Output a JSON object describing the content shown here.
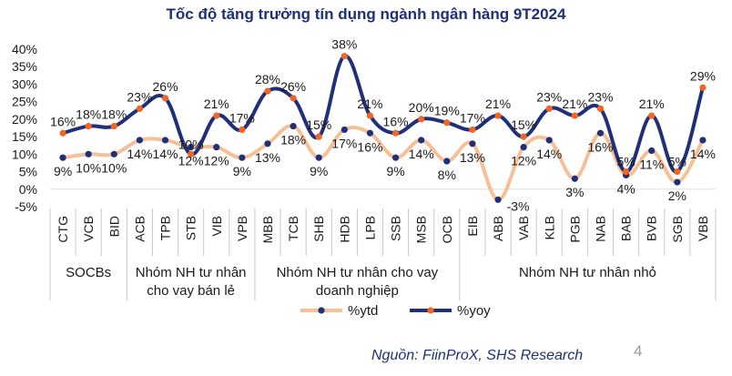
{
  "page": {
    "source": "Nguồn: FiinProX, SHS Research",
    "page_number": "4"
  },
  "chart_data": {
    "type": "line",
    "title": "Tốc độ tăng trưởng tín dụng ngành ngân hàng 9T2024",
    "xlabel": "",
    "ylabel": "",
    "ylim": [
      -5,
      40
    ],
    "yticks": [
      "-5%",
      "0%",
      "5%",
      "10%",
      "15%",
      "20%",
      "25%",
      "30%",
      "35%",
      "40%"
    ],
    "categories": [
      "CTG",
      "VCB",
      "BID",
      "ACB",
      "TPB",
      "STB",
      "VIB",
      "VPB",
      "MBB",
      "TCB",
      "SHB",
      "HDB",
      "LPB",
      "SSB",
      "MSB",
      "OCB",
      "EIB",
      "ABB",
      "VAB",
      "KLB",
      "PGB",
      "NAB",
      "BAB",
      "BVB",
      "SGB",
      "VBB"
    ],
    "groups": [
      {
        "label_lines": [
          "SOCBs"
        ],
        "start": 0,
        "end": 2
      },
      {
        "label_lines": [
          "Nhóm NH tư nhân",
          "cho vay bán lẻ"
        ],
        "start": 3,
        "end": 7
      },
      {
        "label_lines": [
          "Nhóm NH tư nhân cho vay",
          "doanh nghiệp"
        ],
        "start": 8,
        "end": 15
      },
      {
        "label_lines": [
          "Nhóm NH tư nhân nhỏ"
        ],
        "start": 16,
        "end": 25
      }
    ],
    "series": [
      {
        "name": "%ytd",
        "color": "#f7bf96",
        "marker": "#1f2f7a",
        "values": [
          9,
          10,
          10,
          14,
          14,
          12,
          12,
          9,
          13,
          18,
          9,
          17,
          16,
          9,
          14,
          8,
          13,
          -3,
          12,
          14,
          3,
          16,
          4,
          11,
          2,
          14
        ],
        "labels": [
          "9%",
          "10%",
          "10%",
          "14%",
          "14%",
          "12%",
          "12%",
          "9%",
          "13%",
          "18%",
          "9%",
          "17%",
          "16%",
          "9%",
          "14%",
          "8%",
          "13%",
          "-3%",
          "12%",
          "14%",
          "3%",
          "16%",
          "4%",
          "11%",
          "2%",
          "14%"
        ]
      },
      {
        "name": "%yoy",
        "color": "#1f2f7a",
        "marker": "#f26522",
        "values": [
          16,
          18,
          18,
          23,
          26,
          10,
          21,
          17,
          28,
          26,
          15,
          38,
          21,
          16,
          20,
          19,
          17,
          21,
          15,
          23,
          21,
          23,
          5,
          21,
          5,
          29
        ],
        "labels": [
          "16%",
          "18%",
          "18%",
          "23%",
          "26%",
          "10%",
          "21%",
          "17%",
          "28%",
          "26%",
          "15%",
          "38%",
          "21%",
          "16%",
          "20%",
          "19%",
          "17%",
          "21%",
          "15%",
          "23%",
          "21%",
          "23%",
          "5%",
          "21%",
          "5%",
          "29%"
        ]
      }
    ],
    "legend_position": "bottom",
    "colors": {
      "title": "#1f2f7a",
      "axis": "#c8c8c8",
      "text": "#1a1a1a"
    }
  }
}
